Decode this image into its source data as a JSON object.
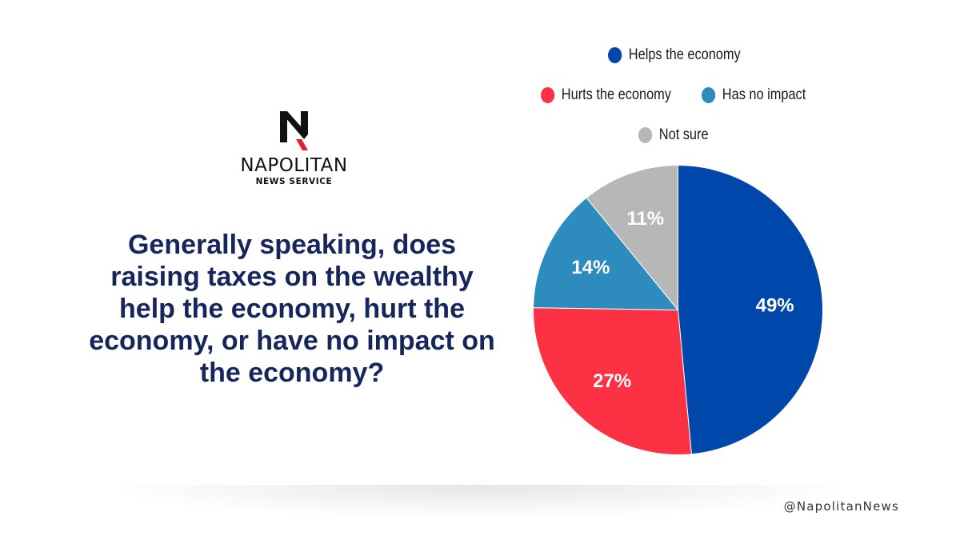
{
  "brand": {
    "name": "NAPOLITAN",
    "subtitle": "NEWS SERVICE",
    "handle": "@NapolitanNews",
    "colors": {
      "logo_black": "#111111",
      "logo_red": "#e0202f"
    }
  },
  "question": "Generally speaking, does raising taxes on the wealthy help the economy, hurt the economy, or have no impact on the economy?",
  "chart_data": {
    "type": "pie",
    "title": "",
    "legend_position": "top",
    "categories": [
      "Helps the economy",
      "Hurts the economy",
      "Has no impact",
      "Not sure"
    ],
    "values": [
      49,
      27,
      14,
      11
    ],
    "labels": [
      "49%",
      "27%",
      "14%",
      "11%"
    ],
    "colors": [
      "#0047ab",
      "#fc3143",
      "#2e8bbe",
      "#b7b7b7"
    ]
  }
}
